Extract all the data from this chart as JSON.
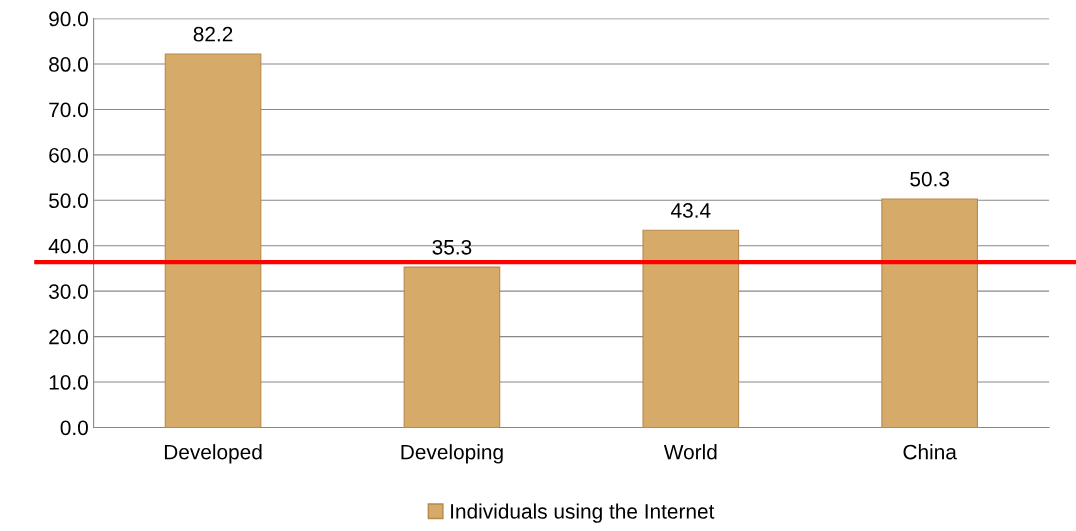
{
  "chart_data": {
    "type": "bar",
    "categories": [
      "Developed",
      "Developing",
      "World",
      "China"
    ],
    "series": [
      {
        "name": "Individuals using the Internet",
        "color": "#d6aa68",
        "values": [
          82.2,
          35.3,
          43.4,
          50.3
        ]
      }
    ],
    "ylim": [
      0,
      90
    ],
    "yticks": [
      {
        "value": 0,
        "label": "0.0"
      },
      {
        "value": 10,
        "label": "10.0"
      },
      {
        "value": 20,
        "label": "20.0"
      },
      {
        "value": 30,
        "label": "30.0"
      },
      {
        "value": 40,
        "label": "40.0"
      },
      {
        "value": 50,
        "label": "50.0"
      },
      {
        "value": 60,
        "label": "60.0"
      },
      {
        "value": 70,
        "label": "70.0"
      },
      {
        "value": 80,
        "label": "80.0"
      },
      {
        "value": 90,
        "label": "90.0"
      }
    ],
    "grid": "y",
    "legend": "bottom",
    "data_labels": true,
    "ref_lines": [
      {
        "axis": "y",
        "value": 36.4,
        "color": "#ff0000",
        "line_style": "solid"
      }
    ]
  }
}
